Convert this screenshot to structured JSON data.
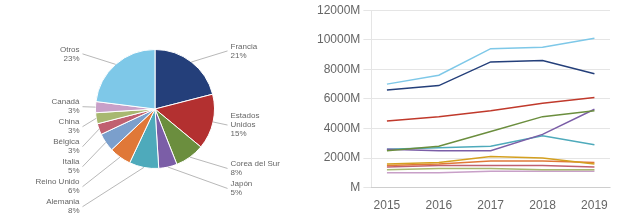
{
  "chart_data": [
    {
      "type": "pie",
      "categories": [
        "Francia",
        "Estados\nUnidos",
        "Corea del Sur",
        "Japón",
        "Alemania",
        "Reino Unido",
        "Italia",
        "Bélgica",
        "China",
        "Canadá",
        "Otros"
      ],
      "values": [
        21,
        15,
        8,
        5,
        8,
        6,
        5,
        3,
        3,
        3,
        23
      ],
      "value_labels": [
        "21%",
        "15%",
        "8%",
        "5%",
        "8%",
        "6%",
        "5%",
        "3%",
        "3%",
        "3%",
        "23%"
      ],
      "colors": [
        "#243F7A",
        "#B33030",
        "#6B8E3E",
        "#7B5EA7",
        "#4EAABB",
        "#E07838",
        "#7B9FCC",
        "#C06070",
        "#A8B870",
        "#C8A0C8",
        "#7EC8E8"
      ],
      "data_labels": true
    },
    {
      "type": "line",
      "x": [
        2015,
        2016,
        2017,
        2018,
        2019
      ],
      "series": [
        {
          "color": "#7EC8E8",
          "values": [
            7000,
            7600,
            9400,
            9500,
            10100
          ]
        },
        {
          "color": "#243F7A",
          "values": [
            6600,
            6900,
            8500,
            8600,
            7700
          ]
        },
        {
          "color": "#C0392B",
          "values": [
            4500,
            4800,
            5200,
            5700,
            6100
          ]
        },
        {
          "color": "#6B8E3E",
          "values": [
            2500,
            2800,
            3800,
            4800,
            5200
          ]
        },
        {
          "color": "#7B5EA7",
          "values": [
            2600,
            2500,
            2500,
            3600,
            5300
          ]
        },
        {
          "color": "#4EAABB",
          "values": [
            2600,
            2700,
            2800,
            3500,
            2900
          ]
        },
        {
          "color": "#D4A020",
          "values": [
            1600,
            1700,
            2100,
            2000,
            1600
          ]
        },
        {
          "color": "#E07838",
          "values": [
            1500,
            1600,
            1800,
            1800,
            1700
          ]
        },
        {
          "color": "#C06070",
          "values": [
            1400,
            1500,
            1500,
            1500,
            1400
          ]
        },
        {
          "color": "#A8B870",
          "values": [
            1200,
            1300,
            1300,
            1200,
            1200
          ]
        },
        {
          "color": "#C8A0C8",
          "values": [
            1000,
            1000,
            1100,
            1100,
            1100
          ]
        }
      ],
      "xlim": [
        2014.7,
        2019.3
      ],
      "xticks": [
        2015,
        2016,
        2017,
        2018,
        2019
      ],
      "ylim": [
        0,
        12000
      ],
      "yticks": [
        {
          "value": 0,
          "label": "M"
        },
        {
          "value": 2000,
          "label": "2000M"
        },
        {
          "value": 4000,
          "label": "4000M"
        },
        {
          "value": 6000,
          "label": "6000M"
        },
        {
          "value": 8000,
          "label": "8000M"
        },
        {
          "value": 10000,
          "label": "10000M"
        },
        {
          "value": 12000,
          "label": "12000M"
        }
      ],
      "grid": "y"
    }
  ]
}
